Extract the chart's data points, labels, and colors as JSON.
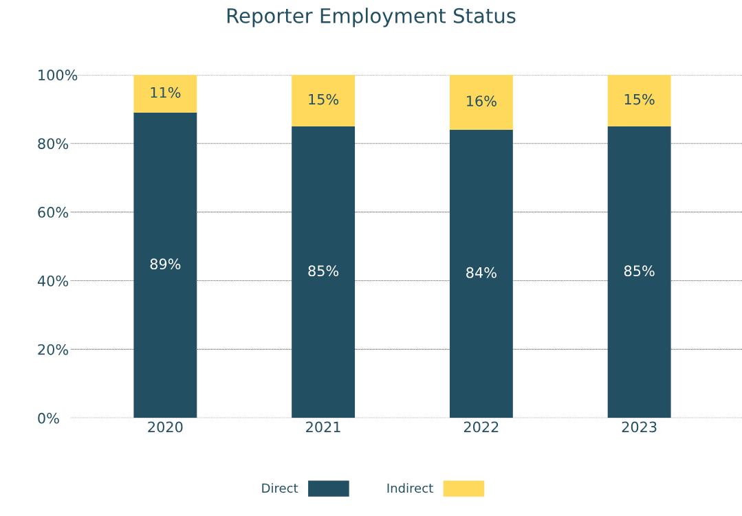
{
  "chart_data": {
    "type": "bar",
    "title": "Reporter Employment Status",
    "stacked": true,
    "categories": [
      "2020",
      "2021",
      "2022",
      "2023"
    ],
    "series": [
      {
        "name": "Direct",
        "color": "#234f63",
        "values": [
          89,
          85,
          84,
          85
        ],
        "value_labels": [
          "89%",
          "85%",
          "84%",
          "85%"
        ]
      },
      {
        "name": "Indirect",
        "color": "#ffd95c",
        "values": [
          11,
          15,
          16,
          15
        ],
        "value_labels": [
          "11%",
          "15%",
          "16%",
          "15%"
        ]
      }
    ],
    "ylim": [
      0,
      100
    ],
    "yticks": [
      {
        "value": 0,
        "label": "0%"
      },
      {
        "value": 20,
        "label": "20%"
      },
      {
        "value": 40,
        "label": "40%"
      },
      {
        "value": 60,
        "label": "60%"
      },
      {
        "value": 80,
        "label": "80%"
      },
      {
        "value": 100,
        "label": "100%"
      }
    ],
    "grid": "y",
    "legend": "bottom"
  }
}
